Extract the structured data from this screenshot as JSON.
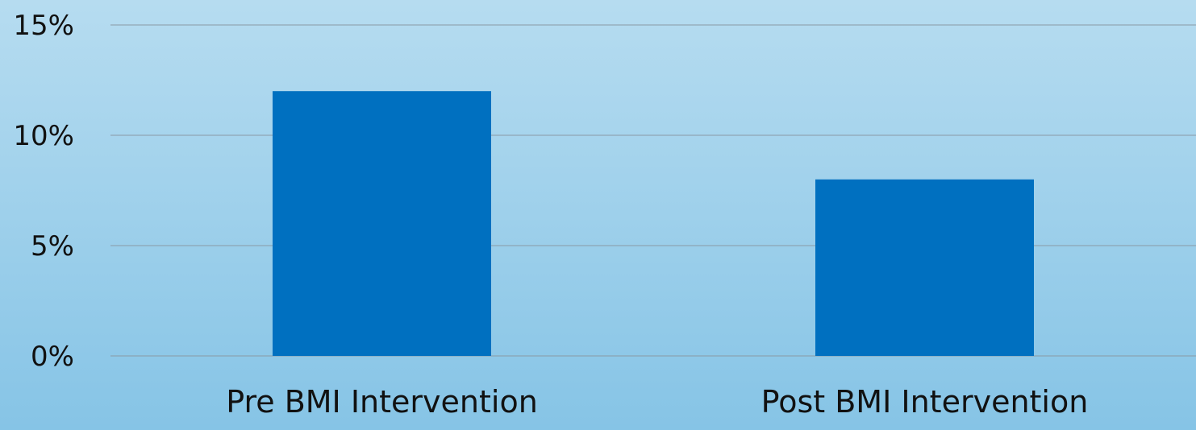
{
  "colors": {
    "background_top": "#b6dcf0",
    "background_bottom": "#86c4e6",
    "bar": "#0070c0",
    "text": "#111111",
    "grid": "#8a9aa5"
  },
  "chart_data": {
    "type": "bar",
    "title": "",
    "xlabel": "",
    "ylabel": "",
    "categories": [
      "Pre BMI Intervention",
      "Post BMI Intervention"
    ],
    "values": [
      0.12,
      0.08
    ],
    "ylim": [
      0,
      0.15
    ],
    "yticks": [
      {
        "value": 0,
        "label": "0%"
      },
      {
        "value": 0.05,
        "label": "5%"
      },
      {
        "value": 0.1,
        "label": "10%"
      },
      {
        "value": 0.15,
        "label": "15%"
      }
    ],
    "grid": true,
    "legend": "none"
  }
}
